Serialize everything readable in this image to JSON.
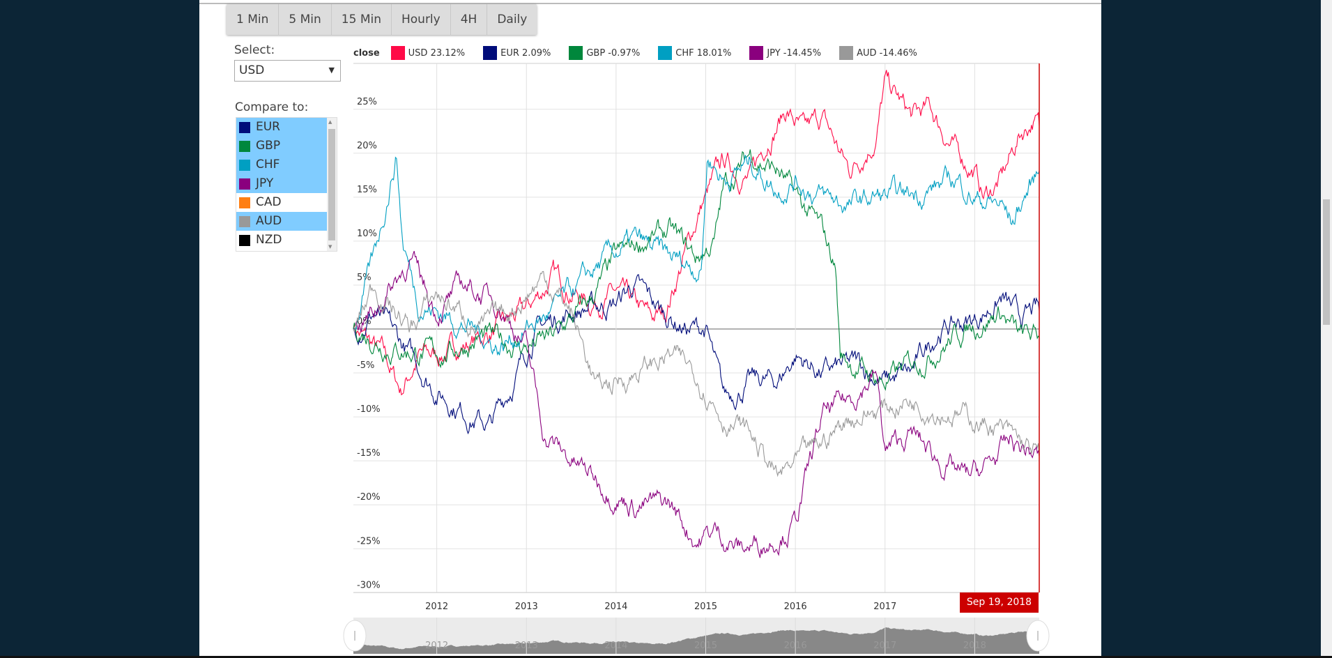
{
  "toolbar": {
    "buttons": [
      "1 Min",
      "5 Min",
      "15 Min",
      "Hourly",
      "4H",
      "Daily"
    ]
  },
  "select": {
    "label": "Select:",
    "value": "USD"
  },
  "compare": {
    "label": "Compare to:",
    "items": [
      {
        "name": "EUR",
        "color": "#000c7a",
        "selected": true
      },
      {
        "name": "GBP",
        "color": "#00873c",
        "selected": true
      },
      {
        "name": "CHF",
        "color": "#009fc2",
        "selected": true
      },
      {
        "name": "JPY",
        "color": "#8a007e",
        "selected": true
      },
      {
        "name": "CAD",
        "color": "#ff7f14",
        "selected": false
      },
      {
        "name": "AUD",
        "color": "#999999",
        "selected": true
      },
      {
        "name": "NZD",
        "color": "#000000",
        "selected": false
      }
    ]
  },
  "chart_data": {
    "type": "line",
    "legend_title": "close",
    "legend_placement": "top-left",
    "xlabel": "",
    "ylabel": "",
    "x_ticks": [
      "2012",
      "2013",
      "2014",
      "2015",
      "2016",
      "2017",
      "2018"
    ],
    "y_ticks": [
      "25%",
      "20%",
      "15%",
      "10%",
      "5%",
      "0%",
      "-5%",
      "-10%",
      "-15%",
      "-20%",
      "-25%",
      "-30%"
    ],
    "ylim": [
      -30,
      28
    ],
    "xlim": [
      2011.07,
      2018.72
    ],
    "cursor_label": "Sep 19, 2018",
    "series": [
      {
        "name": "USD",
        "label": "USD 23.12%",
        "color": "#ff0a47",
        "points": [
          [
            2011.07,
            0
          ],
          [
            2011.4,
            -3
          ],
          [
            2011.6,
            -7
          ],
          [
            2011.8,
            -3
          ],
          [
            2012,
            -3
          ],
          [
            2012.5,
            -1
          ],
          [
            2013,
            2
          ],
          [
            2013.3,
            6
          ],
          [
            2013.7,
            3
          ],
          [
            2014,
            4
          ],
          [
            2014.4,
            1
          ],
          [
            2014.55,
            2
          ],
          [
            2014.75,
            8
          ],
          [
            2014.95,
            14
          ],
          [
            2015.2,
            19
          ],
          [
            2015.5,
            17
          ],
          [
            2015.7,
            22
          ],
          [
            2015.9,
            25
          ],
          [
            2016.1,
            22
          ],
          [
            2016.3,
            24
          ],
          [
            2016.6,
            18
          ],
          [
            2016.9,
            22
          ],
          [
            2017.0,
            28
          ],
          [
            2017.3,
            24
          ],
          [
            2017.5,
            25
          ],
          [
            2017.8,
            20
          ],
          [
            2018.0,
            18
          ],
          [
            2018.1,
            15
          ],
          [
            2018.3,
            17
          ],
          [
            2018.5,
            22
          ],
          [
            2018.65,
            24
          ],
          [
            2018.72,
            23.12
          ]
        ]
      },
      {
        "name": "EUR",
        "label": "EUR 2.09%",
        "color": "#000c7a",
        "points": [
          [
            2011.07,
            0
          ],
          [
            2011.3,
            2
          ],
          [
            2011.7,
            -3
          ],
          [
            2012,
            -7
          ],
          [
            2012.4,
            -10
          ],
          [
            2012.6,
            -11
          ],
          [
            2012.9,
            -5
          ],
          [
            2013.1,
            0
          ],
          [
            2013.5,
            2
          ],
          [
            2014,
            3
          ],
          [
            2014.2,
            5
          ],
          [
            2014.5,
            2
          ],
          [
            2014.8,
            0
          ],
          [
            2015.0,
            0
          ],
          [
            2015.2,
            -8
          ],
          [
            2015.5,
            -6
          ],
          [
            2015.8,
            -6
          ],
          [
            2016,
            -3
          ],
          [
            2016.3,
            -5
          ],
          [
            2016.7,
            -4
          ],
          [
            2017,
            -6
          ],
          [
            2017.3,
            -5
          ],
          [
            2017.6,
            0
          ],
          [
            2018,
            1
          ],
          [
            2018.3,
            3.5
          ],
          [
            2018.5,
            1
          ],
          [
            2018.72,
            2.09
          ]
        ]
      },
      {
        "name": "GBP",
        "label": "GBP -0.97%",
        "color": "#00873c",
        "points": [
          [
            2011.07,
            0
          ],
          [
            2011.5,
            -2
          ],
          [
            2012,
            -3
          ],
          [
            2012.5,
            -1
          ],
          [
            2013,
            -2
          ],
          [
            2013.3,
            -1
          ],
          [
            2013.7,
            3
          ],
          [
            2014,
            8
          ],
          [
            2014.3,
            10
          ],
          [
            2014.6,
            11
          ],
          [
            2014.9,
            8
          ],
          [
            2015.1,
            10
          ],
          [
            2015.2,
            16
          ],
          [
            2015.5,
            20
          ],
          [
            2015.8,
            18
          ],
          [
            2016,
            15
          ],
          [
            2016.3,
            11
          ],
          [
            2016.45,
            7
          ],
          [
            2016.5,
            -3
          ],
          [
            2016.8,
            -5
          ],
          [
            2017,
            -6
          ],
          [
            2017.3,
            -4
          ],
          [
            2017.6,
            -2
          ],
          [
            2017.9,
            0
          ],
          [
            2018.1,
            1
          ],
          [
            2018.3,
            2
          ],
          [
            2018.5,
            -1
          ],
          [
            2018.72,
            -0.97
          ]
        ]
      },
      {
        "name": "CHF",
        "label": "CHF 18.01%",
        "color": "#009fc2",
        "points": [
          [
            2011.07,
            0
          ],
          [
            2011.3,
            8
          ],
          [
            2011.55,
            20
          ],
          [
            2011.62,
            10
          ],
          [
            2011.8,
            3
          ],
          [
            2012,
            2
          ],
          [
            2012.4,
            0
          ],
          [
            2012.7,
            -2
          ],
          [
            2013,
            0
          ],
          [
            2013.3,
            2
          ],
          [
            2013.6,
            5
          ],
          [
            2013.9,
            8
          ],
          [
            2014.2,
            10
          ],
          [
            2014.6,
            8
          ],
          [
            2014.95,
            7
          ],
          [
            2015.02,
            20
          ],
          [
            2015.2,
            17
          ],
          [
            2015.5,
            19
          ],
          [
            2015.8,
            16
          ],
          [
            2016,
            17
          ],
          [
            2016.3,
            15
          ],
          [
            2016.6,
            14
          ],
          [
            2016.9,
            15
          ],
          [
            2017.2,
            15
          ],
          [
            2017.5,
            16
          ],
          [
            2017.8,
            17
          ],
          [
            2018,
            15
          ],
          [
            2018.3,
            14
          ],
          [
            2018.42,
            12
          ],
          [
            2018.55,
            15
          ],
          [
            2018.72,
            18.01
          ]
        ]
      },
      {
        "name": "JPY",
        "label": "JPY -14.45%",
        "color": "#8a007e",
        "points": [
          [
            2011.07,
            0
          ],
          [
            2011.3,
            2
          ],
          [
            2011.7,
            8
          ],
          [
            2012,
            2
          ],
          [
            2012.3,
            5
          ],
          [
            2012.7,
            3
          ],
          [
            2013,
            -2
          ],
          [
            2013.2,
            -12
          ],
          [
            2013.5,
            -15
          ],
          [
            2013.9,
            -18
          ],
          [
            2014.2,
            -20
          ],
          [
            2014.6,
            -20
          ],
          [
            2014.9,
            -24
          ],
          [
            2015.1,
            -23
          ],
          [
            2015.4,
            -25
          ],
          [
            2015.7,
            -24
          ],
          [
            2016,
            -22
          ],
          [
            2016.3,
            -10
          ],
          [
            2016.6,
            -8
          ],
          [
            2016.9,
            -5
          ],
          [
            2017,
            -14
          ],
          [
            2017.3,
            -12
          ],
          [
            2017.6,
            -15
          ],
          [
            2017.9,
            -17
          ],
          [
            2018.1,
            -16
          ],
          [
            2018.4,
            -13
          ],
          [
            2018.72,
            -14.45
          ]
        ]
      },
      {
        "name": "AUD",
        "label": "AUD -14.46%",
        "color": "#999999",
        "points": [
          [
            2011.07,
            0
          ],
          [
            2011.3,
            5
          ],
          [
            2011.7,
            0
          ],
          [
            2012,
            4
          ],
          [
            2012.5,
            0
          ],
          [
            2012.8,
            2
          ],
          [
            2013.2,
            6
          ],
          [
            2013.5,
            2
          ],
          [
            2013.8,
            -7
          ],
          [
            2014.2,
            -5
          ],
          [
            2014.6,
            -3
          ],
          [
            2014.9,
            -5
          ],
          [
            2015.2,
            -10
          ],
          [
            2015.5,
            -12
          ],
          [
            2015.8,
            -17
          ],
          [
            2016.2,
            -14
          ],
          [
            2016.6,
            -10
          ],
          [
            2017,
            -9
          ],
          [
            2017.3,
            -8
          ],
          [
            2017.6,
            -9
          ],
          [
            2017.9,
            -10
          ],
          [
            2018.2,
            -11
          ],
          [
            2018.5,
            -13
          ],
          [
            2018.72,
            -14.46
          ]
        ]
      }
    ]
  }
}
